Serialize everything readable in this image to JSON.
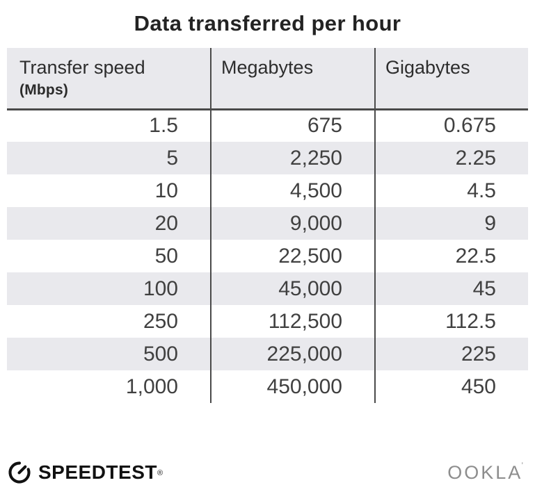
{
  "title": "Data transferred per hour",
  "chart_data": {
    "type": "table",
    "title": "Data transferred per hour",
    "columns": [
      "Transfer speed (Mbps)",
      "Megabytes",
      "Gigabytes"
    ],
    "rows": [
      [
        1.5,
        675,
        0.675
      ],
      [
        5,
        2250,
        2.25
      ],
      [
        10,
        4500,
        4.5
      ],
      [
        20,
        9000,
        9
      ],
      [
        50,
        22500,
        22.5
      ],
      [
        100,
        45000,
        45
      ],
      [
        250,
        112500,
        112.5
      ],
      [
        500,
        225000,
        225
      ],
      [
        1000,
        450000,
        450
      ]
    ]
  },
  "table": {
    "columns": [
      {
        "label": "Transfer speed",
        "sublabel": "(Mbps)"
      },
      {
        "label": "Megabytes"
      },
      {
        "label": "Gigabytes"
      }
    ],
    "rows": [
      [
        "1.5",
        "675",
        "0.675"
      ],
      [
        "5",
        "2,250",
        "2.25"
      ],
      [
        "10",
        "4,500",
        "4.5"
      ],
      [
        "20",
        "9,000",
        "9"
      ],
      [
        "50",
        "22,500",
        "22.5"
      ],
      [
        "100",
        "45,000",
        "45"
      ],
      [
        "250",
        "112,500",
        "112.5"
      ],
      [
        "500",
        "225,000",
        "225"
      ],
      [
        "1,000",
        "450,000",
        "450"
      ]
    ]
  },
  "footer": {
    "speedtest": {
      "label": "SPEEDTEST",
      "mark": "®"
    },
    "ookla": {
      "label": "OOKLA",
      "mark": "’"
    }
  },
  "colors": {
    "stripe_gray": "#e9e9ed",
    "divider_dark": "#4a4a4a",
    "title_text": "#232323",
    "body_text": "#404040",
    "logo_black": "#111111",
    "ookla_gray": "#8d8d8d",
    "background": "#ffffff"
  }
}
